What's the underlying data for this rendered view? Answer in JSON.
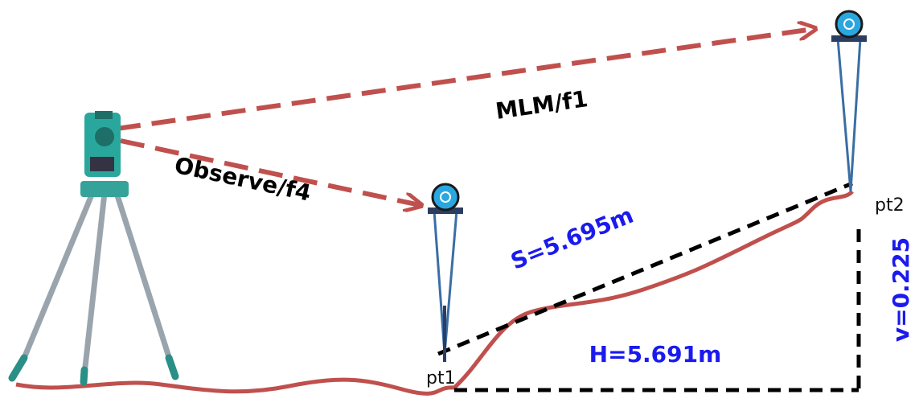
{
  "labels": {
    "mlm": "MLM/f1",
    "observe": "Observe/f4",
    "slope": "S=5.695m",
    "horizontal": "H=5.691m",
    "vertical": "v=0.225",
    "pt1": "pt1",
    "pt2": "pt2"
  }
}
